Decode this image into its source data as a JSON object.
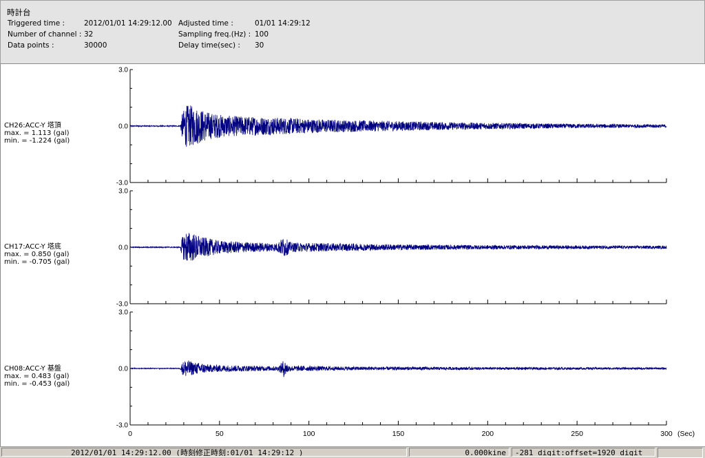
{
  "header": {
    "title": "時計台",
    "fields": [
      {
        "label": "Triggered time :",
        "value": "2012/01/01 14:29:12.00"
      },
      {
        "label": "Number of channel :",
        "value": "32"
      },
      {
        "label": "Data points :",
        "value": "30000"
      },
      {
        "label": "Adjusted time :",
        "value": "01/01 14:29:12"
      },
      {
        "label": "Sampling freq.(Hz) :",
        "value": "100"
      },
      {
        "label": "Delay time(sec) :",
        "value": "30"
      }
    ]
  },
  "chart_data": [
    {
      "type": "line",
      "channel_label": "CH26:ACC-Y 塔頂",
      "max_text": "max. = 1.113 (gal)",
      "min_text": "min. = -1.224 (gal)",
      "max": 1.113,
      "min": -1.224,
      "y_ticks": [
        "3.0",
        "0.0",
        "-3.0"
      ],
      "ylim": [
        -3.0,
        3.0
      ],
      "xlim": [
        0,
        300
      ],
      "color": "#000080",
      "envelope": [
        [
          0,
          0.03
        ],
        [
          28,
          0.03
        ],
        [
          29,
          0.6
        ],
        [
          31,
          1.113
        ],
        [
          34,
          1.1
        ],
        [
          38,
          0.95
        ],
        [
          45,
          0.7
        ],
        [
          55,
          0.55
        ],
        [
          70,
          0.5
        ],
        [
          85,
          0.45
        ],
        [
          100,
          0.38
        ],
        [
          120,
          0.32
        ],
        [
          150,
          0.26
        ],
        [
          180,
          0.2
        ],
        [
          210,
          0.16
        ],
        [
          240,
          0.12
        ],
        [
          270,
          0.1
        ],
        [
          300,
          0.09
        ]
      ]
    },
    {
      "type": "line",
      "channel_label": "CH17:ACC-Y 塔底",
      "max_text": "max. = 0.850 (gal)",
      "min_text": "min. = -0.705 (gal)",
      "max": 0.85,
      "min": -0.705,
      "y_ticks": [
        "3.0",
        "0.0",
        "-3.0"
      ],
      "ylim": [
        -3.0,
        3.0
      ],
      "xlim": [
        0,
        300
      ],
      "color": "#000080",
      "envelope": [
        [
          0,
          0.03
        ],
        [
          28,
          0.03
        ],
        [
          29,
          0.5
        ],
        [
          31,
          0.85
        ],
        [
          34,
          0.8
        ],
        [
          40,
          0.55
        ],
        [
          50,
          0.35
        ],
        [
          70,
          0.25
        ],
        [
          82,
          0.22
        ],
        [
          86,
          0.55
        ],
        [
          90,
          0.25
        ],
        [
          110,
          0.22
        ],
        [
          150,
          0.15
        ],
        [
          200,
          0.11
        ],
        [
          250,
          0.09
        ],
        [
          300,
          0.08
        ]
      ]
    },
    {
      "type": "line",
      "channel_label": "CH08:ACC-Y 基盤",
      "max_text": "max. = 0.483 (gal)",
      "min_text": "min. = -0.453 (gal)",
      "max": 0.483,
      "min": -0.453,
      "y_ticks": [
        "3.0",
        "0.0",
        "-3.0"
      ],
      "ylim": [
        -3.0,
        3.0
      ],
      "xlim": [
        0,
        300
      ],
      "color": "#000080",
      "envelope": [
        [
          0,
          0.02
        ],
        [
          28,
          0.02
        ],
        [
          29,
          0.3
        ],
        [
          31,
          0.483
        ],
        [
          35,
          0.35
        ],
        [
          45,
          0.2
        ],
        [
          70,
          0.14
        ],
        [
          83,
          0.12
        ],
        [
          86,
          0.48
        ],
        [
          89,
          0.15
        ],
        [
          120,
          0.1
        ],
        [
          200,
          0.07
        ],
        [
          300,
          0.05
        ]
      ]
    }
  ],
  "x_axis": {
    "ticks": [
      "0",
      "50",
      "100",
      "150",
      "200",
      "250",
      "300"
    ],
    "unit": "(Sec)"
  },
  "statusbar": {
    "time": "2012/01/01 14:29:12.00  (時刻修正時刻:01/01 14:29:12  )",
    "velocity": "0.000kine",
    "digit": "-281 digit:offset=1920 digit",
    "extra": ""
  }
}
